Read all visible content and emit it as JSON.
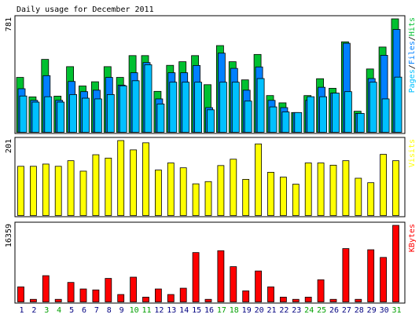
{
  "chart_data": {
    "type": "bar",
    "title": "Daily usage for December 2011",
    "days": [
      "1",
      "2",
      "3",
      "4",
      "5",
      "6",
      "7",
      "8",
      "9",
      "10",
      "11",
      "12",
      "13",
      "14",
      "15",
      "16",
      "17",
      "18",
      "19",
      "20",
      "21",
      "22",
      "23",
      "24",
      "25",
      "26",
      "27",
      "28",
      "29",
      "30",
      "31"
    ],
    "weekend_days": [
      "3",
      "4",
      "10",
      "11",
      "17",
      "18",
      "24",
      "25",
      "31"
    ],
    "colors": {
      "hits": "#00c030",
      "files": "#0080ff",
      "pages": "#00c0ff",
      "visits": "#ffff00",
      "kbytes": "#ff0000",
      "weekday_label": "#000080",
      "weekend_label": "#00a000"
    },
    "panels": [
      {
        "id": "hits",
        "max_label": "781",
        "ylim": [
          0,
          781
        ],
        "legend": [
          {
            "text": "Pages",
            "color": "#00c0ff"
          },
          {
            "text": "Files",
            "color": "#0080ff"
          },
          {
            "text": "Hits",
            "color": "#00c030"
          }
        ],
        "series": [
          {
            "name": "Hits",
            "values": [
              378,
              244,
              502,
              249,
              452,
              319,
              348,
              452,
              378,
              528,
              528,
              282,
              461,
              486,
              528,
              328,
              597,
              486,
              361,
              536,
              253,
              203,
              136,
              253,
              369,
              303,
              623,
              145,
              436,
              587,
              781
            ]
          },
          {
            "name": "Files",
            "values": [
              300,
              220,
              390,
              220,
              350,
              280,
              290,
              378,
              325,
              410,
              480,
              230,
              410,
              410,
              460,
              170,
              545,
              440,
              290,
              450,
              220,
              170,
              136,
              220,
              310,
              270,
              613,
              130,
              370,
              530,
              708
            ]
          },
          {
            "name": "Pages",
            "values": [
              250,
              208,
              245,
              208,
              260,
              235,
              230,
              260,
              320,
              355,
              465,
              195,
              345,
              345,
              345,
              155,
              345,
              345,
              215,
              370,
              175,
              140,
              136,
              245,
              245,
              270,
              280,
              130,
              345,
              230,
              380
            ]
          }
        ]
      },
      {
        "id": "visits",
        "max_label": "201",
        "ylim": [
          0,
          201
        ],
        "legend": [
          {
            "text": "Visits",
            "color": "#ffff00"
          }
        ],
        "series": [
          {
            "name": "Visits",
            "values": [
              132,
              132,
              138,
              132,
              147,
              119,
              163,
              154,
              201,
              176,
              195,
              122,
              141,
              128,
              85,
              91,
              134,
              151,
              97,
              192,
              116,
              103,
              84,
              141,
              141,
              135,
              147,
              100,
              88,
              164,
              147
            ]
          }
        ]
      },
      {
        "id": "kbytes",
        "max_label": "16359",
        "ylim": [
          0,
          16359
        ],
        "legend": [
          {
            "text": "KBytes",
            "color": "#ff0000"
          }
        ],
        "series": [
          {
            "name": "KBytes",
            "values": [
              3216,
              548,
              5606,
              548,
              4163,
              2764,
              2563,
              5022,
              1581,
              5287,
              1021,
              2764,
              1581,
              2930,
              10546,
              548,
              10944,
              7535,
              2358,
              6608,
              3216,
              1021,
              548,
              1021,
              4736,
              548,
              11396,
              548,
              11149,
              9508,
              16359
            ]
          }
        ]
      }
    ]
  }
}
